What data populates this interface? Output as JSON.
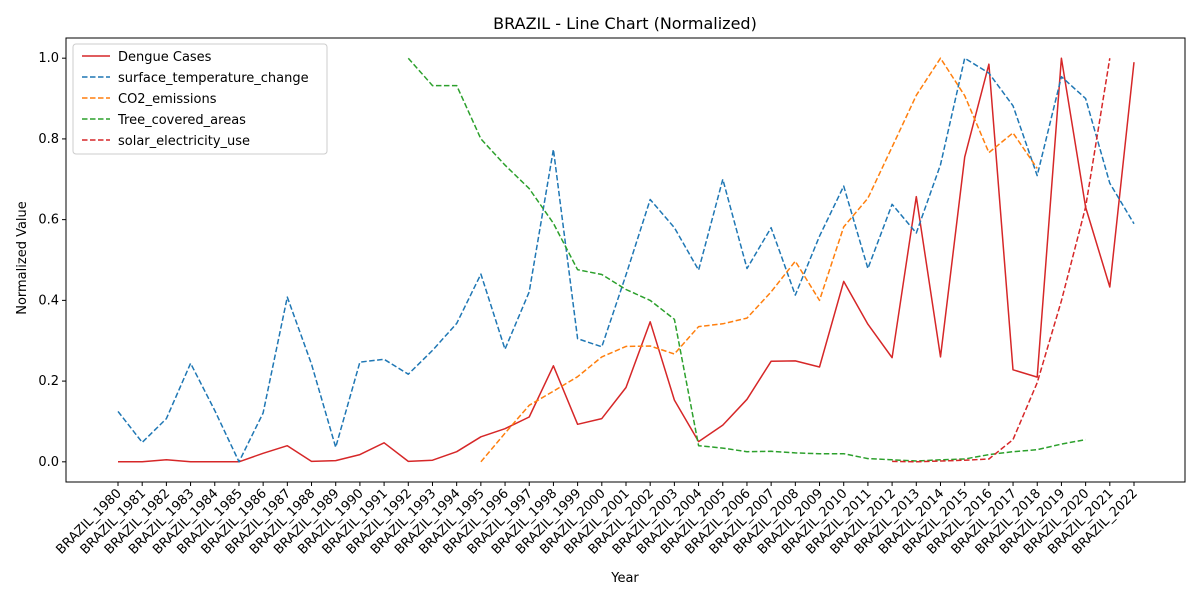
{
  "chart_data": {
    "type": "line",
    "title": "BRAZIL - Line Chart (Normalized)",
    "xlabel": "Year",
    "ylabel": "Normalized Value",
    "ylim": [
      -0.05,
      1.05
    ],
    "yticks": [
      0.0,
      0.2,
      0.4,
      0.6,
      0.8,
      1.0
    ],
    "ytick_labels": [
      "0.0",
      "0.2",
      "0.4",
      "0.6",
      "0.8",
      "1.0"
    ],
    "grid": false,
    "legend_position": "top-left",
    "categories": [
      "BRAZIL_1980",
      "BRAZIL_1981",
      "BRAZIL_1982",
      "BRAZIL_1983",
      "BRAZIL_1984",
      "BRAZIL_1985",
      "BRAZIL_1986",
      "BRAZIL_1987",
      "BRAZIL_1988",
      "BRAZIL_1989",
      "BRAZIL_1990",
      "BRAZIL_1991",
      "BRAZIL_1992",
      "BRAZIL_1993",
      "BRAZIL_1994",
      "BRAZIL_1995",
      "BRAZIL_1996",
      "BRAZIL_1997",
      "BRAZIL_1998",
      "BRAZIL_1999",
      "BRAZIL_2000",
      "BRAZIL_2001",
      "BRAZIL_2002",
      "BRAZIL_2003",
      "BRAZIL_2004",
      "BRAZIL_2005",
      "BRAZIL_2006",
      "BRAZIL_2007",
      "BRAZIL_2008",
      "BRAZIL_2009",
      "BRAZIL_2010",
      "BRAZIL_2011",
      "BRAZIL_2012",
      "BRAZIL_2013",
      "BRAZIL_2014",
      "BRAZIL_2015",
      "BRAZIL_2016",
      "BRAZIL_2017",
      "BRAZIL_2018",
      "BRAZIL_2019",
      "BRAZIL_2020",
      "BRAZIL_2021",
      "BRAZIL_2022"
    ],
    "series": [
      {
        "name": "Dengue Cases",
        "color": "#d62728",
        "dashed": false,
        "values": [
          0.0,
          0.0,
          0.005,
          0.0,
          0.0,
          0.0,
          0.021,
          0.04,
          0.001,
          0.003,
          0.018,
          0.047,
          0.001,
          0.004,
          0.025,
          0.062,
          0.082,
          0.111,
          0.238,
          0.093,
          0.107,
          0.184,
          0.347,
          0.153,
          0.05,
          0.091,
          0.155,
          0.249,
          0.25,
          0.235,
          0.447,
          0.341,
          0.258,
          0.657,
          0.26,
          0.755,
          0.985,
          0.228,
          0.21,
          1.0,
          0.631,
          0.433,
          0.99
        ]
      },
      {
        "name": "surface_temperature_change",
        "color": "#1f77b4",
        "dashed": true,
        "values": [
          0.125,
          0.048,
          0.107,
          0.244,
          0.127,
          0.0,
          0.121,
          0.408,
          0.242,
          0.036,
          0.247,
          0.254,
          0.217,
          0.276,
          0.343,
          0.465,
          0.279,
          0.421,
          0.774,
          0.305,
          0.285,
          0.463,
          0.65,
          0.58,
          0.475,
          0.7,
          0.479,
          0.58,
          0.413,
          0.559,
          0.683,
          0.479,
          0.638,
          0.567,
          0.736,
          1.0,
          0.963,
          0.882,
          0.709,
          0.954,
          0.9,
          0.69,
          0.59
        ]
      },
      {
        "name": "CO2_emissions",
        "color": "#ff7f0e",
        "dashed": true,
        "values": [
          null,
          null,
          null,
          null,
          null,
          null,
          null,
          null,
          null,
          null,
          null,
          null,
          null,
          null,
          null,
          0.0,
          0.071,
          0.14,
          0.175,
          0.211,
          0.26,
          0.286,
          0.287,
          0.267,
          0.335,
          0.342,
          0.356,
          0.421,
          0.497,
          0.4,
          0.582,
          0.653,
          0.78,
          0.908,
          1.0,
          0.907,
          0.766,
          0.815,
          0.727,
          null,
          null,
          null,
          null
        ]
      },
      {
        "name": "Tree_covered_areas",
        "color": "#2ca02c",
        "dashed": true,
        "values": [
          null,
          null,
          null,
          null,
          null,
          null,
          null,
          null,
          null,
          null,
          null,
          null,
          1.0,
          0.932,
          0.932,
          0.8,
          0.735,
          0.677,
          0.591,
          0.476,
          0.464,
          0.427,
          0.4,
          0.353,
          0.04,
          0.034,
          0.025,
          0.026,
          0.022,
          0.02,
          0.02,
          0.008,
          0.005,
          0.002,
          0.005,
          0.007,
          0.018,
          0.025,
          0.03,
          0.044,
          0.055,
          null,
          null
        ]
      },
      {
        "name": "solar_electricity_use",
        "color": "#d62728",
        "dashed": true,
        "values": [
          null,
          null,
          null,
          null,
          null,
          null,
          null,
          null,
          null,
          null,
          null,
          null,
          null,
          null,
          null,
          null,
          null,
          null,
          null,
          null,
          null,
          null,
          null,
          null,
          null,
          null,
          null,
          null,
          null,
          null,
          null,
          null,
          0.001,
          0.0,
          0.002,
          0.004,
          0.007,
          0.055,
          0.196,
          0.399,
          0.631,
          1.0,
          null
        ]
      }
    ]
  }
}
